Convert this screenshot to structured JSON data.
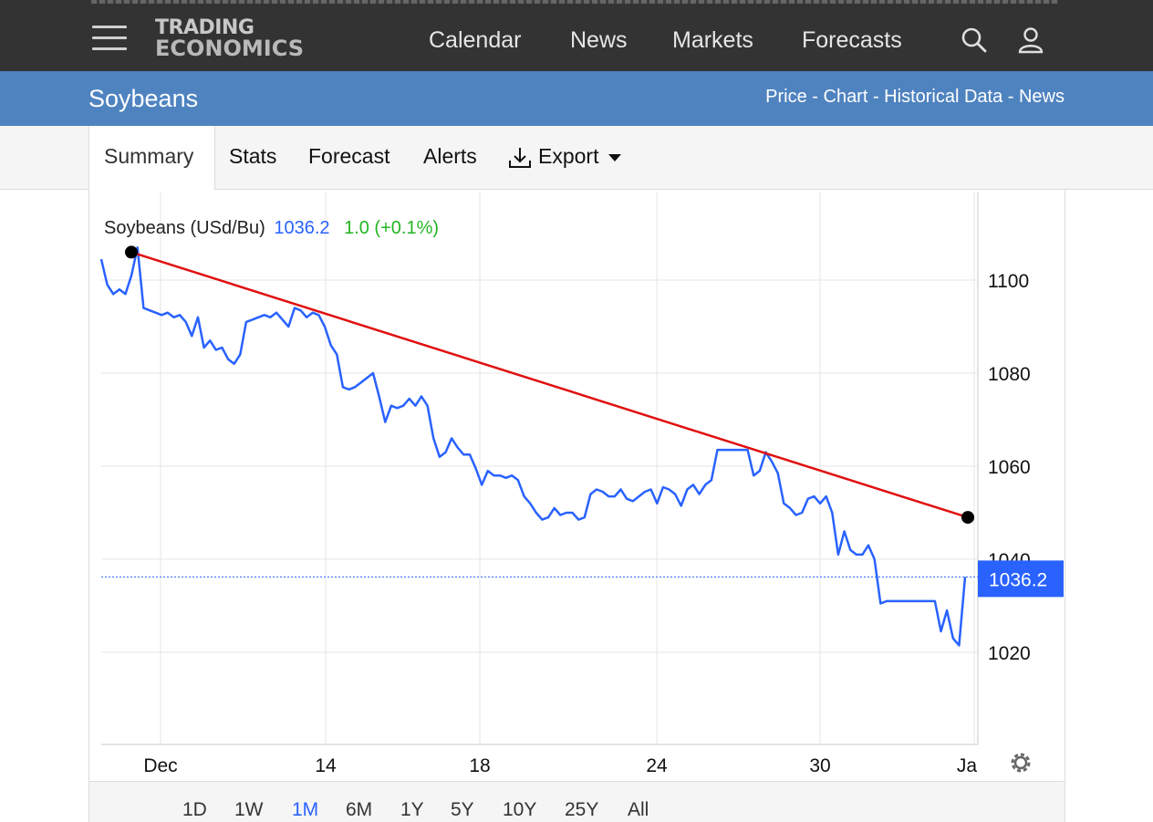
{
  "header": {
    "logo_line1": "TRADING",
    "logo_line2": "ECONOMICS",
    "nav": [
      "Calendar",
      "News",
      "Markets",
      "Forecasts"
    ],
    "icons": [
      "menu-icon",
      "search-icon",
      "user-icon"
    ]
  },
  "subheader": {
    "title": "Soybeans",
    "links": "Price - Chart - Historical Data - News"
  },
  "tabs": {
    "summary": "Summary",
    "stats": "Stats",
    "forecast": "Forecast",
    "alerts": "Alerts",
    "export": "Export"
  },
  "legend": {
    "name": "Soybeans (USd/Bu)",
    "price": "1036.2",
    "change": "1.0 (+0.1%)"
  },
  "ranges": [
    "1D",
    "1W",
    "1M",
    "6M",
    "1Y",
    "5Y",
    "10Y",
    "25Y",
    "All"
  ],
  "active_range": "1M",
  "colors": {
    "series": "#2962ff",
    "trendline": "#e01010",
    "change_positive": "#22b522",
    "header_bg": "#333333",
    "subheader_bg": "#4f83c0"
  },
  "chart_data": {
    "type": "line",
    "x_tick_labels": [
      "Dec",
      "14",
      "18",
      "24",
      "30",
      "Ja"
    ],
    "y_tick_labels": [
      "1100",
      "1080",
      "1060",
      "1040",
      "1020"
    ],
    "ylim": [
      1000,
      1110
    ],
    "current_value": 1036.2,
    "current_value_label": "1036.2",
    "series": [
      {
        "values": [
          1104.5,
          1099,
          1097,
          1098,
          1097,
          1101,
          1107,
          1094,
          1093.5,
          1093,
          1092.5,
          1093,
          1092,
          1092.5,
          1091,
          1088,
          1092,
          1085.5,
          1087,
          1085,
          1085.5,
          1083,
          1082,
          1084,
          1091,
          1091.5,
          1092,
          1092.5,
          1092,
          1093,
          1091.5,
          1090,
          1094,
          1093.5,
          1092,
          1093,
          1092.5,
          1090,
          1086,
          1084,
          1077,
          1076.5,
          1077,
          1078,
          1079,
          1080,
          1075,
          1069.5,
          1073,
          1072.5,
          1073,
          1074.5,
          1073,
          1075,
          1073,
          1066,
          1062,
          1063,
          1066,
          1064,
          1062.5,
          1062.5,
          1059.5,
          1056,
          1059,
          1058,
          1058,
          1057.5,
          1058,
          1057,
          1053.5,
          1052,
          1050,
          1048.5,
          1049,
          1051,
          1049.5,
          1050,
          1050,
          1048.5,
          1049,
          1054,
          1055,
          1054.5,
          1053.5,
          1053.5,
          1055,
          1053,
          1052.5,
          1053.5,
          1054.5,
          1055,
          1052,
          1055.5,
          1055,
          1054,
          1051.5,
          1055,
          1056,
          1054,
          1056,
          1057,
          1063.5,
          1063.5,
          1063.5,
          1063.5,
          1063.5,
          1063.5,
          1058,
          1059,
          1063,
          1061,
          1058.5,
          1052,
          1051,
          1049.5,
          1050,
          1053,
          1053.5,
          1052,
          1053.5,
          1050,
          1041,
          1046,
          1042,
          1041,
          1041,
          1043,
          1040,
          1030.5,
          1031,
          1031,
          1031,
          1031,
          1031,
          1031,
          1031,
          1031,
          1031,
          1024.5,
          1029,
          1023,
          1021.5,
          1036.2
        ]
      }
    ],
    "trendline": {
      "from": 1106,
      "to": 1049
    }
  }
}
